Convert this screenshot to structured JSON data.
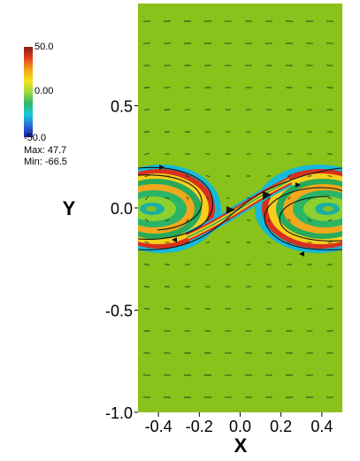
{
  "colorbar": {
    "max_label": "50.0",
    "mid_label": "0.00",
    "min_label": "-50.0",
    "range": [
      -50,
      50
    ],
    "stops": [
      "#1b1f9c",
      "#2a6ae0",
      "#18c9d6",
      "#2fb86a",
      "#a0d93a",
      "#f7e21a",
      "#f5a21b",
      "#e0401d",
      "#8e1a14"
    ]
  },
  "stats": {
    "max_text": "Max:  47.7",
    "min_text": "Min: -66.5"
  },
  "axes": {
    "xlabel": "X",
    "ylabel": "Y",
    "xlim": [
      -0.5,
      0.5
    ],
    "ylim": [
      -1.0,
      1.0
    ],
    "x_ticks": [
      -0.4,
      -0.2,
      0.0,
      0.2,
      0.4
    ],
    "x_tick_labels": [
      "-0.4",
      "-0.2",
      "0.0",
      "0.2",
      "0.4"
    ],
    "y_ticks": [
      -1.0,
      -0.5,
      0.0,
      0.5
    ],
    "y_tick_labels": [
      "-1.0",
      "-0.5",
      "0.0",
      "0.5"
    ]
  },
  "field": {
    "background_color": "#88c21a",
    "vortex_centers": [
      [
        -0.4,
        0.0
      ],
      [
        0.43,
        0.0
      ]
    ]
  }
}
